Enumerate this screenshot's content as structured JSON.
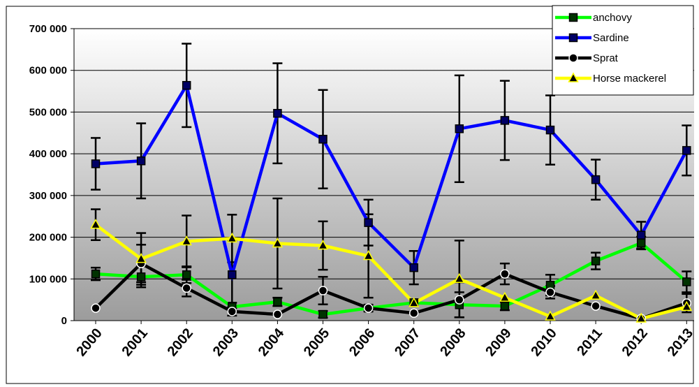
{
  "chart_data": {
    "type": "line",
    "x": [
      "2000",
      "2001",
      "2002",
      "2003",
      "2004",
      "2005",
      "2006",
      "2007",
      "2008",
      "2009",
      "2010",
      "2011",
      "2012",
      "2013"
    ],
    "ylim": [
      0,
      700000
    ],
    "yticks": [
      0,
      100000,
      200000,
      300000,
      400000,
      500000,
      600000,
      700000
    ],
    "ytick_labels": [
      "0",
      "100 000",
      "200 000",
      "300 000",
      "400 000",
      "500 000",
      "600 000",
      "700 000"
    ],
    "grid": true,
    "legend_position": "top-right",
    "background": "gradient-gray",
    "series": [
      {
        "name": "anchovy",
        "color": "#00ff00",
        "marker": "square",
        "values": [
          112000,
          105000,
          110000,
          33000,
          45000,
          15000,
          30000,
          43000,
          38000,
          35000,
          85000,
          143000,
          186000,
          93000
        ],
        "err": [
          15000,
          25000,
          20000,
          10000,
          10000,
          8000,
          8000,
          8000,
          30000,
          10000,
          25000,
          20000,
          15000,
          25000
        ]
      },
      {
        "name": "Sardine",
        "color": "#0000ff",
        "marker": "square",
        "values": [
          376000,
          383000,
          564000,
          110000,
          497000,
          435000,
          235000,
          127000,
          460000,
          480000,
          457000,
          338000,
          205000,
          408000
        ],
        "err": [
          62000,
          90000,
          100000,
          80000,
          120000,
          118000,
          55000,
          40000,
          128000,
          95000,
          83000,
          48000,
          32000,
          60000
        ]
      },
      {
        "name": "Sprat",
        "color": "#000000",
        "marker": "circle",
        "values": [
          30000,
          137000,
          78000,
          22000,
          15000,
          72000,
          30000,
          18000,
          50000,
          112000,
          68000,
          35000,
          5000,
          42000
        ],
        "err": [
          0,
          45000,
          20000,
          10000,
          0,
          33000,
          0,
          0,
          42000,
          25000,
          15000,
          0,
          0,
          22000
        ]
      },
      {
        "name": "Horse mackerel",
        "color": "#ffff00",
        "marker": "triangle",
        "values": [
          230000,
          148000,
          190000,
          197000,
          185000,
          180000,
          155000,
          42000,
          100000,
          55000,
          10000,
          60000,
          5000,
          33000
        ],
        "err": [
          37000,
          62000,
          62000,
          57000,
          108000,
          58000,
          100000,
          0,
          92000,
          0,
          0,
          0,
          0,
          0
        ]
      }
    ]
  }
}
